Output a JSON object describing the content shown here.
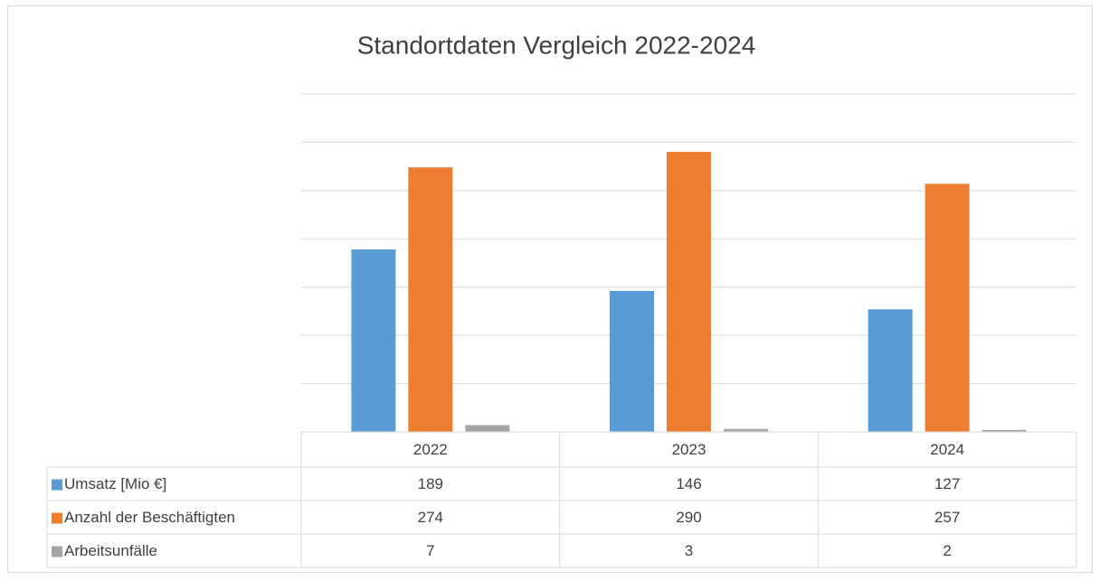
{
  "chart_data": {
    "type": "bar",
    "title": "Standortdaten Vergleich 2022-2024",
    "categories": [
      "2022",
      "2023",
      "2024"
    ],
    "series": [
      {
        "name": "Umsatz [Mio €]",
        "color": "#5b9bd5",
        "values": [
          189,
          146,
          127
        ]
      },
      {
        "name": "Anzahl der Beschäftigten",
        "color": "#ed7d31",
        "values": [
          274,
          290,
          257
        ]
      },
      {
        "name": "Arbeitsunfälle",
        "color": "#a5a5a5",
        "values": [
          7,
          3,
          2
        ]
      }
    ],
    "ylim": [
      0,
      350
    ],
    "yticks": [
      0,
      50,
      100,
      150,
      200,
      250,
      300,
      350
    ],
    "grid": true
  }
}
